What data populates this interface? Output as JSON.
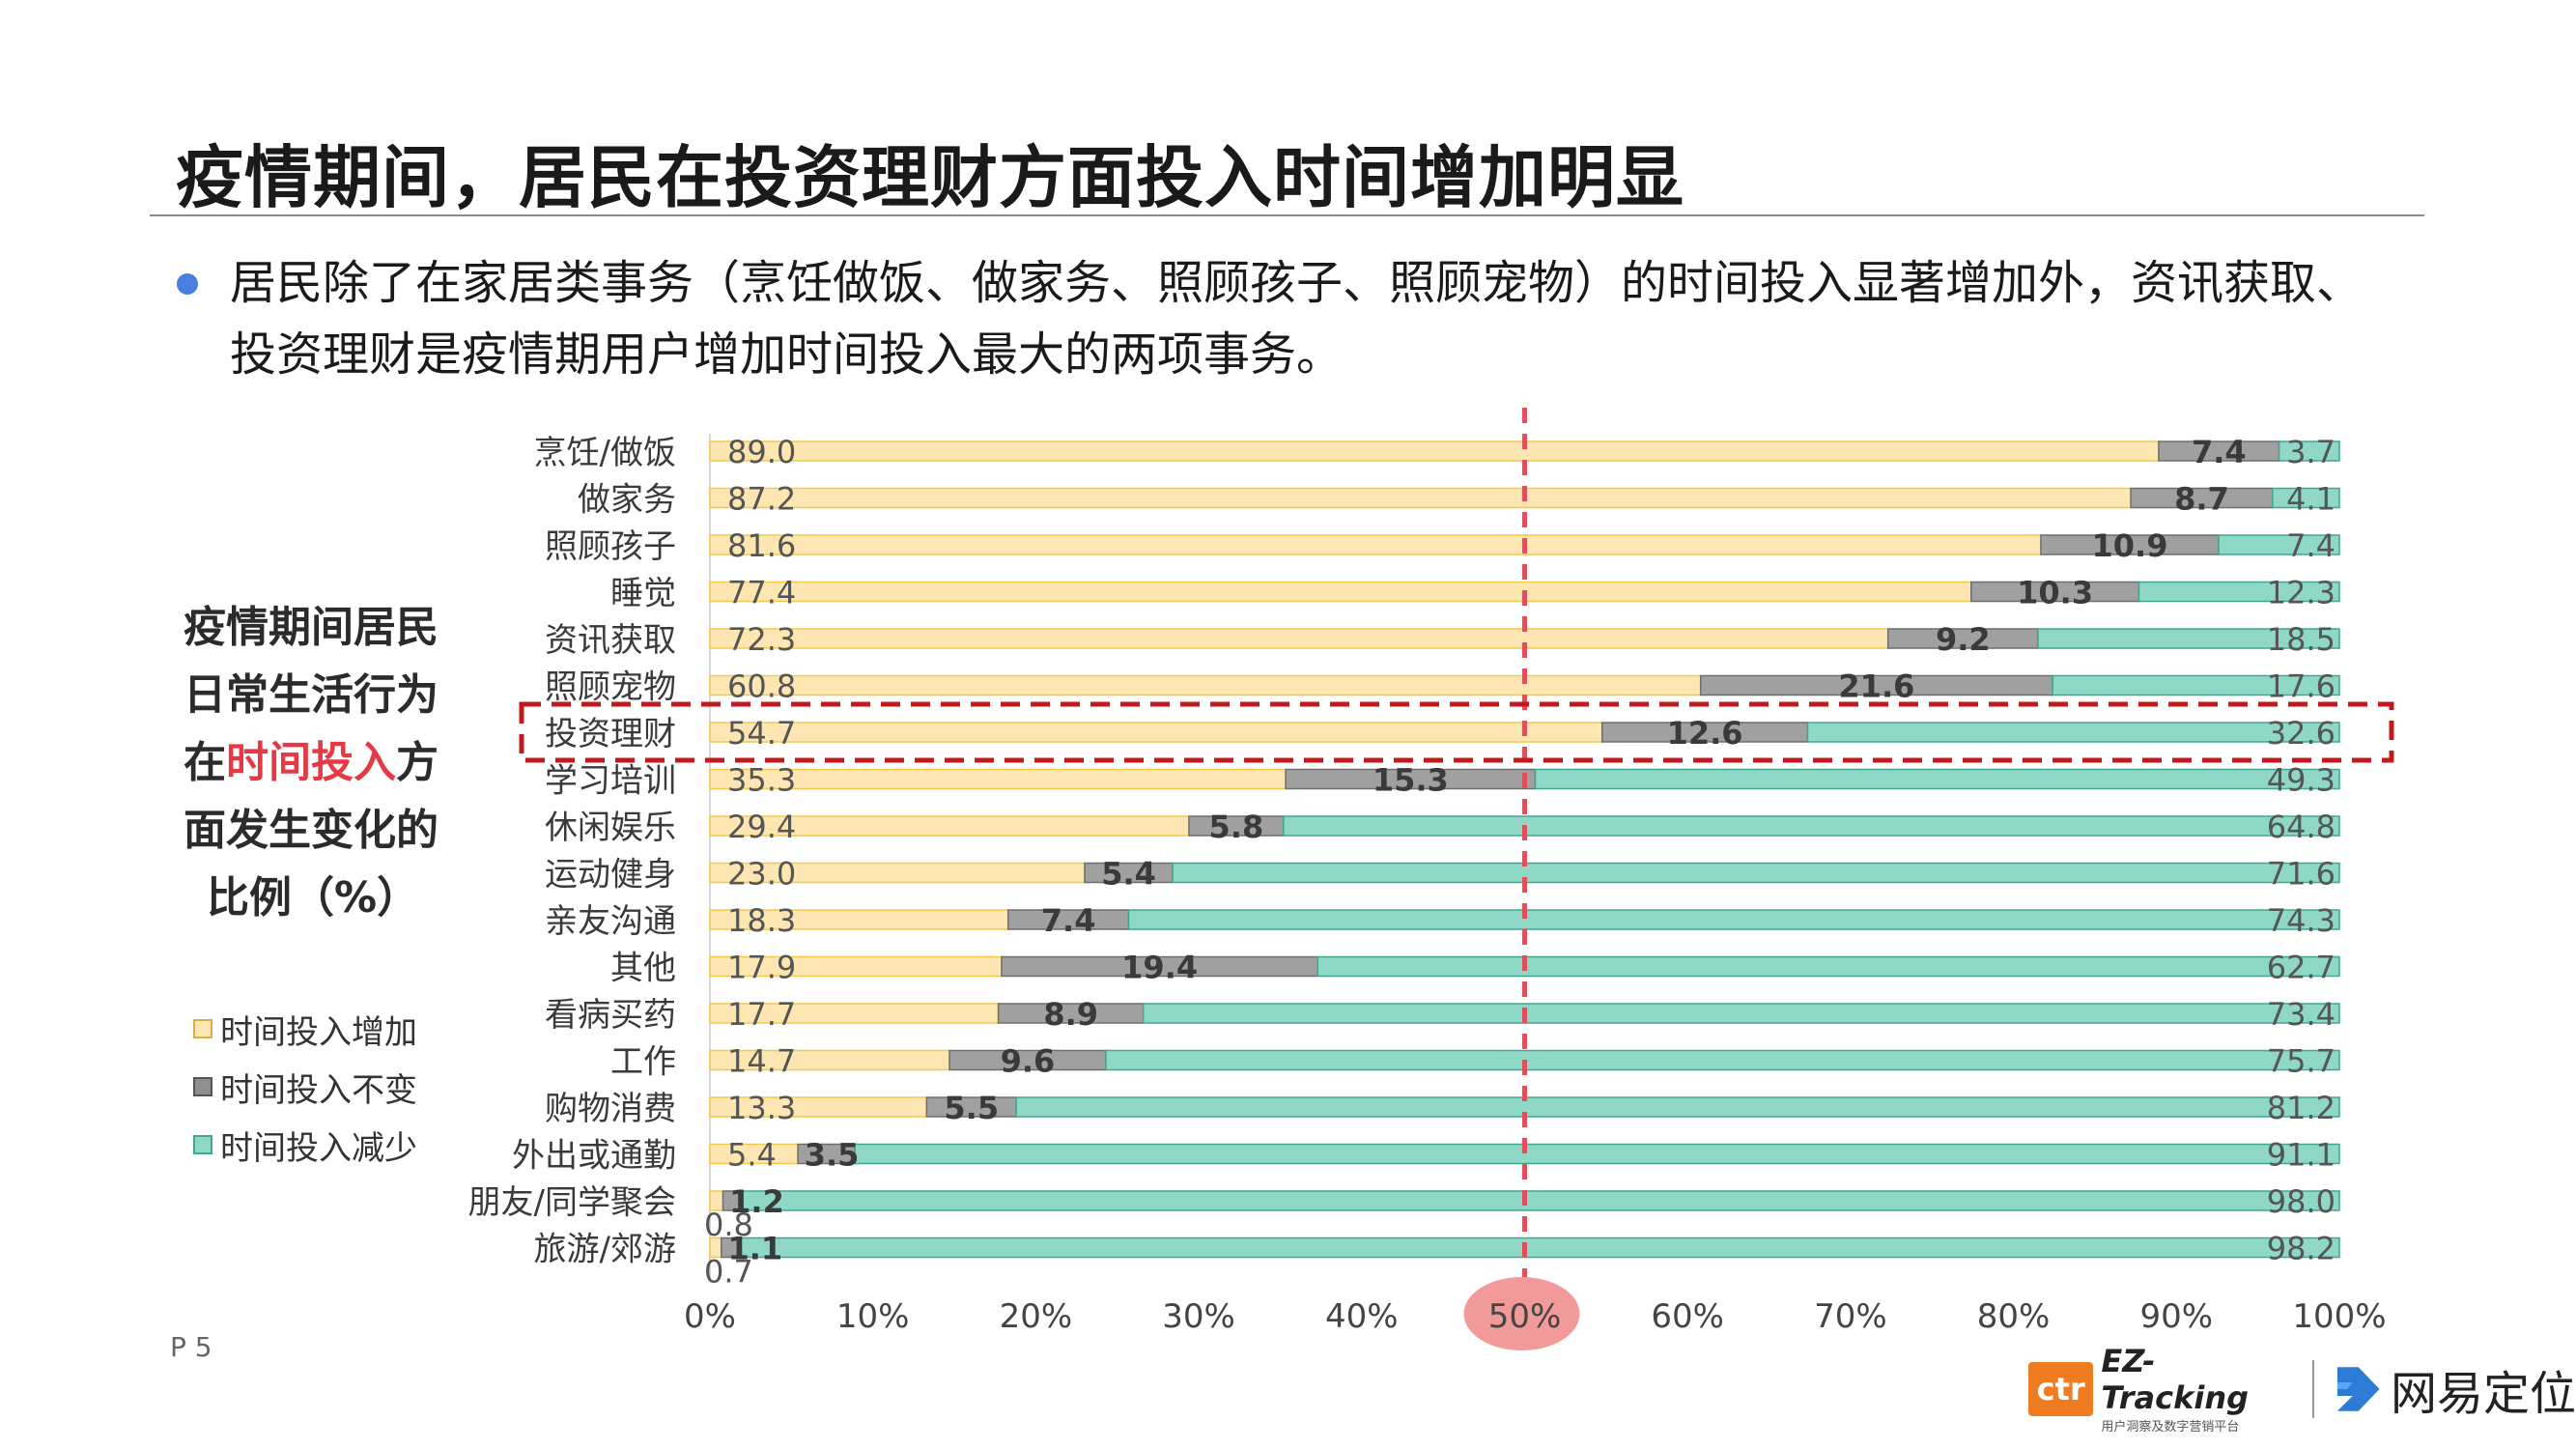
{
  "title": "疫情期间，居民在投资理财方面投入时间增加明显",
  "bullet": "居民除了在家居类事务（烹饪做饭、做家务、照顾孩子、照顾宠物）的时间投入显著增加外，资讯获取、投资理财是疫情期用户增加时间投入最大的两项事务。",
  "side_title": {
    "line1": "疫情期间居民",
    "line2": "日常生活行为",
    "line3_prefix": "在",
    "line3_highlight": "时间投入",
    "line3_suffix": "方",
    "line4": "面发生变化的",
    "line5": "比例（%）"
  },
  "page_number": "P 5",
  "logos": {
    "ctr": "ctr",
    "ez_tracking": "EZ-Tracking",
    "ez_subtitle": "用户洞察及数字营销平台",
    "netease": "网易定位",
    "netease_icon": "netease-arrow-icon"
  },
  "colors": {
    "increase": "#fde6b1",
    "increase_border": "#f2c94c",
    "unchanged": "#a0a0a0",
    "unchanged_border": "#6e6e6e",
    "decrease": "#8fd8c8",
    "decrease_border": "#3fa88f",
    "marker_line": "#e0505a",
    "marker_ellipse": "#f29a9a",
    "highlight_box": "#c0191e",
    "title_highlight": "#e63946",
    "bullet": "#4a7fe0"
  },
  "chart_data": {
    "type": "bar",
    "orientation": "horizontal",
    "stacked": "percent",
    "highlight_category": "投资理财",
    "reference_line": "50%",
    "categories": [
      "烹饪/做饭",
      "做家务",
      "照顾孩子",
      "睡觉",
      "资讯获取",
      "照顾宠物",
      "投资理财",
      "学习培训",
      "休闲娱乐",
      "运动健身",
      "亲友沟通",
      "其他",
      "看病买药",
      "工作",
      "购物消费",
      "外出或通勤",
      "朋友/同学聚会",
      "旅游/郊游"
    ],
    "series": [
      {
        "name": "时间投入增加",
        "values": [
          89.0,
          87.2,
          81.6,
          77.4,
          72.3,
          60.8,
          54.7,
          35.3,
          29.4,
          23.0,
          18.3,
          17.9,
          17.7,
          14.7,
          13.3,
          5.4,
          0.8,
          0.7
        ]
      },
      {
        "name": "时间投入不变",
        "values": [
          7.4,
          8.7,
          10.9,
          10.3,
          9.2,
          21.6,
          12.6,
          15.3,
          5.8,
          5.4,
          7.4,
          19.4,
          8.9,
          9.6,
          5.5,
          3.5,
          1.2,
          1.1
        ]
      },
      {
        "name": "时间投入减少",
        "values": [
          3.7,
          4.1,
          7.4,
          12.3,
          18.5,
          17.6,
          32.6,
          49.3,
          64.8,
          71.6,
          74.3,
          62.7,
          73.4,
          75.7,
          81.2,
          91.1,
          98.0,
          98.2
        ]
      }
    ],
    "increase_labels": [
      "89.0",
      "87.2",
      "81.6",
      "77.4",
      "72.3",
      "60.8",
      "54.7",
      "35.3",
      "29.4",
      "23.0",
      "18.3",
      "17.9",
      "17.7",
      "14.7",
      "13.3",
      "5.4",
      "0.8",
      "0.7"
    ],
    "unchanged_labels": [
      "7.4",
      "8.7",
      "10.9",
      "10.3",
      "9.2",
      "21.6",
      "12.6",
      "15.3",
      "5.8",
      "5.4",
      "7.4",
      "19.4",
      "8.9",
      "9.6",
      "5.5",
      "3.5",
      "1.2",
      "1.1"
    ],
    "decrease_labels": [
      "3.7",
      "4.1",
      "7.4",
      "12.3",
      "18.5",
      "17.6",
      "32.6",
      "49.3",
      "64.8",
      "71.6",
      "74.3",
      "62.7",
      "73.4",
      "75.7",
      "81.2",
      "91.1",
      "98.0",
      "98.2"
    ],
    "xlim": [
      0,
      100
    ],
    "xticks": [
      "0%",
      "10%",
      "20%",
      "30%",
      "40%",
      "50%",
      "60%",
      "70%",
      "80%",
      "90%",
      "100%"
    ],
    "xlabel": "",
    "ylabel": ""
  }
}
